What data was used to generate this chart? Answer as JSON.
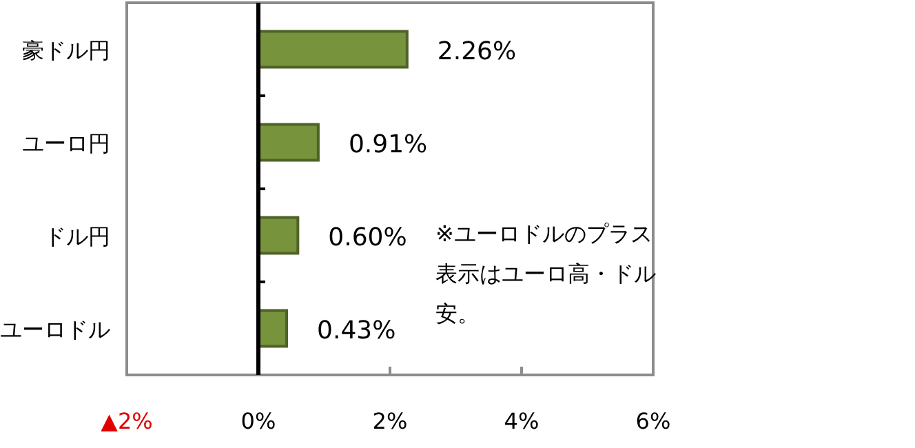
{
  "chart_data": {
    "type": "bar",
    "orientation": "horizontal",
    "categories": [
      "豪ドル円",
      "ユーロ円",
      "ドル円",
      "ユーロドル"
    ],
    "values": [
      2.26,
      0.91,
      0.6,
      0.43
    ],
    "value_labels": [
      "2.26%",
      "0.91%",
      "0.60%",
      "0.43%"
    ],
    "color": "#77933c",
    "xlim": [
      -2,
      6
    ],
    "xticks": [
      {
        "value": -2,
        "label": "▲2%"
      },
      {
        "value": 0,
        "label": "0%"
      },
      {
        "value": 2,
        "label": "2%"
      },
      {
        "value": 4,
        "label": "4%"
      },
      {
        "value": 6,
        "label": "6%"
      }
    ],
    "annotations": [
      "※ユーロドルのプラス表示はユーロ高・ドル安。"
    ]
  }
}
